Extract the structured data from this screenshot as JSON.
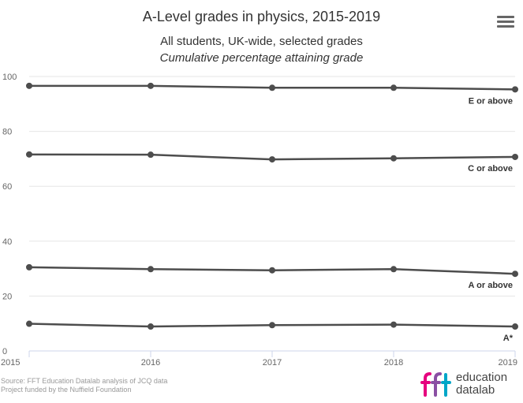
{
  "chart_data": {
    "type": "line",
    "title": "A-Level grades in physics, 2015-2019",
    "subtitle": [
      "All students, UK-wide, selected grades",
      "Cumulative percentage attaining grade"
    ],
    "x": [
      2015,
      2016,
      2017,
      2018,
      2019
    ],
    "ylim": [
      0,
      100
    ],
    "yticks": [
      0,
      20,
      40,
      60,
      80,
      100
    ],
    "grid": true,
    "series": [
      {
        "name": "E or above",
        "values": [
          96.6,
          96.6,
          95.9,
          95.9,
          95.3
        ]
      },
      {
        "name": "C or above",
        "values": [
          71.6,
          71.5,
          69.8,
          70.2,
          70.7
        ]
      },
      {
        "name": "A or above",
        "values": [
          30.5,
          29.8,
          29.4,
          29.8,
          28.1
        ]
      },
      {
        "name": "A*",
        "values": [
          9.9,
          8.9,
          9.4,
          9.6,
          8.9
        ]
      }
    ],
    "line_color": "#4d4d4d"
  },
  "footer": {
    "source": "Source: FFT Education Datalab analysis of JCQ data",
    "funding": "Project funded by the Nuffield Foundation"
  },
  "logo": {
    "mark": "fft",
    "line1": "education",
    "line2": "datalab",
    "colors": [
      "#e6007e",
      "#8a4fa3",
      "#00a6c8"
    ]
  },
  "menu_icon": "hamburger-menu-icon"
}
